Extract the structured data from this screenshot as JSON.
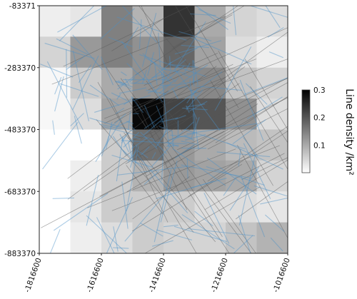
{
  "chart_data": {
    "type": "heatmap",
    "title": "",
    "x_ticks": [
      "-1816600",
      "-1616600",
      "-1416600",
      "-1216600",
      "-1016600"
    ],
    "y_ticks": [
      "-83371",
      "-283370",
      "-483370",
      "-683370",
      "-883370"
    ],
    "x_range": [
      -1816600,
      -1016600
    ],
    "y_range": [
      -883370,
      -83371
    ],
    "grid_cols": 8,
    "grid_rows": 8,
    "cell_values": [
      [
        0.02,
        0.03,
        0.15,
        0.09,
        0.24,
        0.1,
        0.05,
        0.04
      ],
      [
        0.05,
        0.12,
        0.15,
        0.13,
        0.18,
        0.11,
        0.04,
        0.02
      ],
      [
        0.01,
        0.06,
        0.1,
        0.13,
        0.14,
        0.14,
        0.07,
        0.05
      ],
      [
        0.01,
        0.04,
        0.11,
        0.29,
        0.22,
        0.2,
        0.13,
        0.04
      ],
      [
        0.0,
        0.0,
        0.06,
        0.17,
        0.12,
        0.1,
        0.08,
        0.07
      ],
      [
        0.0,
        0.02,
        0.06,
        0.09,
        0.12,
        0.11,
        0.1,
        0.05
      ],
      [
        0.0,
        0.03,
        0.06,
        0.06,
        0.06,
        0.04,
        0.04,
        0.03
      ],
      [
        0.0,
        0.02,
        0.04,
        0.06,
        0.05,
        0.05,
        0.07,
        0.09
      ]
    ],
    "colorbar": {
      "label": "Line density /km²",
      "min": 0.0,
      "max": 0.3,
      "ticks": [
        "0.1",
        "0.2",
        "0.3"
      ],
      "low_color": "#ffffff",
      "high_color": "#000000"
    },
    "overlay_color": "#4a90c8"
  }
}
